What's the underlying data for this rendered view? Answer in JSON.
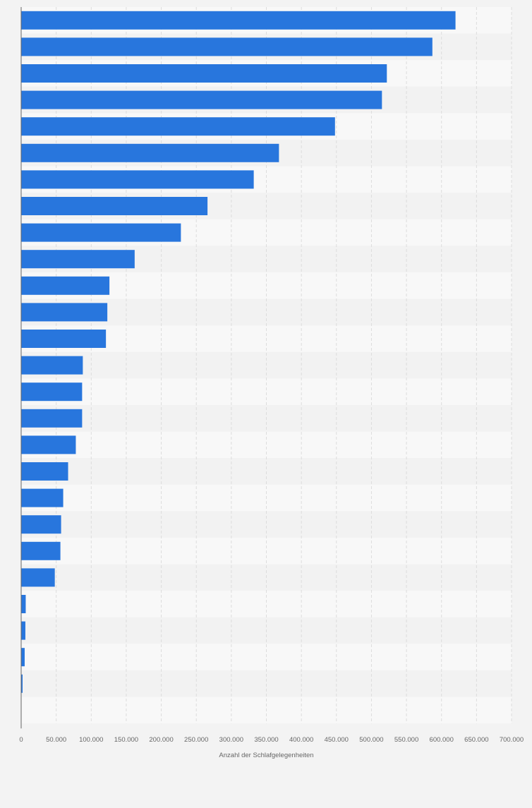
{
  "chart_data": {
    "type": "bar",
    "orientation": "horizontal",
    "categories": [
      "",
      "",
      "",
      "",
      "",
      "",
      "",
      "",
      "",
      "",
      "",
      "",
      "",
      "",
      "",
      "",
      "",
      "",
      "",
      "",
      "",
      "",
      "",
      "",
      "",
      ""
    ],
    "values": [
      620000,
      587000,
      522000,
      515000,
      448000,
      368000,
      332000,
      266000,
      228000,
      162000,
      126000,
      123000,
      121000,
      88000,
      87000,
      87000,
      78000,
      67000,
      60000,
      57000,
      56000,
      48000,
      6500,
      6000,
      5000,
      2000
    ],
    "title": "",
    "xlabel": "Anzahl der Schlafgelegenheiten",
    "ylabel": "",
    "xlim": [
      0,
      700000
    ],
    "x_ticks": [
      0,
      50000,
      100000,
      150000,
      200000,
      250000,
      300000,
      350000,
      400000,
      450000,
      500000,
      550000,
      600000,
      650000,
      700000
    ],
    "x_tick_labels": [
      "0",
      "50.000",
      "100.000",
      "150.000",
      "200.000",
      "250.000",
      "300.000",
      "350.000",
      "400.000",
      "450.000",
      "500.000",
      "550.000",
      "600.000",
      "650.000",
      "700.000"
    ],
    "grid": true,
    "legend": "none",
    "colors": {
      "bar": "#2876dd",
      "band_light": "#f8f8f8",
      "band_dark": "#f2f2f2",
      "gridline": "#dcdcdc",
      "axis": "#666666",
      "background": "#f3f3f3"
    }
  }
}
